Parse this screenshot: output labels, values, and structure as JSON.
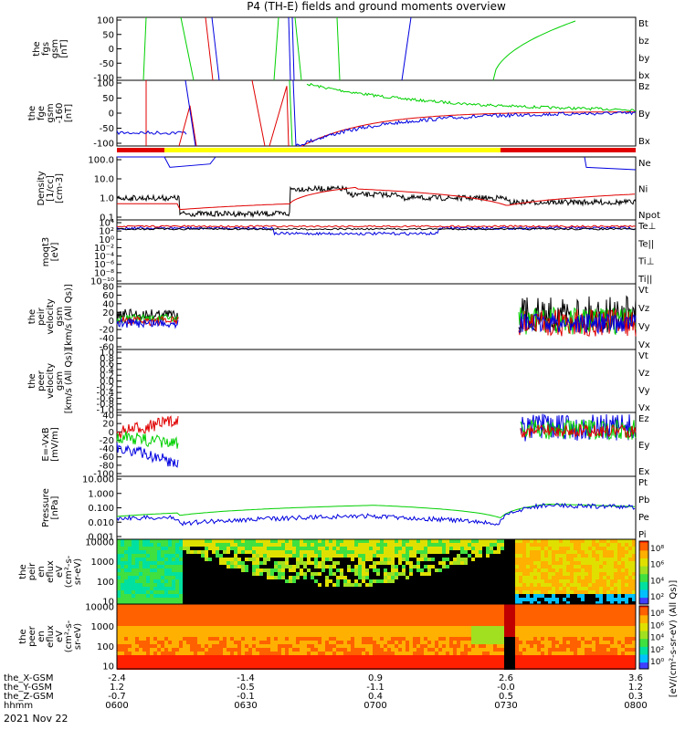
{
  "title": "P4 (TH-E) fields and ground moments overview",
  "date": "2021 Nov 22",
  "colors": {
    "black": "#000000",
    "red": "#e00000",
    "green": "#00d000",
    "blue": "#0000e0",
    "yellow": "#ffff00"
  },
  "panels": [
    {
      "id": "fgs",
      "ylabel": [
        "the",
        "fgs",
        "gsm",
        "[nT]"
      ],
      "ticks": [
        "100",
        "50",
        "0",
        "-50",
        "-100"
      ],
      "legend": [
        {
          "t": "Bt",
          "c": "black"
        },
        {
          "t": "bz",
          "c": "red"
        },
        {
          "t": "by",
          "c": "green"
        },
        {
          "t": "bx",
          "c": "blue"
        }
      ]
    },
    {
      "id": "fge",
      "ylabel": [
        "the",
        "fge",
        "gsm",
        "-160",
        "[nT]"
      ],
      "ticks": [
        "100",
        "50",
        "0",
        "-50",
        "-100"
      ],
      "legend": [
        {
          "t": "Bz",
          "c": "red"
        },
        {
          "t": "By",
          "c": "green"
        },
        {
          "t": "Bx",
          "c": "blue"
        }
      ]
    },
    {
      "id": "density",
      "ylabel": [
        "Density",
        "[1/cc]",
        "[cm-3]"
      ],
      "ticks": [
        "100.0",
        "10.0",
        "1.0",
        "0.1"
      ],
      "legend": [
        {
          "t": "Ne",
          "c": "red"
        },
        {
          "t": "Ni",
          "c": "black"
        },
        {
          "t": "Npot",
          "c": "blue"
        }
      ]
    },
    {
      "id": "temp",
      "ylabel": [
        "moqt3",
        "[eV]"
      ],
      "ticks": [
        "10⁴",
        "10²",
        "10⁰",
        "10⁻²",
        "10⁻⁴",
        "10⁻⁶",
        "10⁻⁸",
        "10⁻¹⁰"
      ],
      "legend": [
        {
          "t": "Te⊥",
          "c": "red"
        },
        {
          "t": "Te||",
          "c": "black"
        },
        {
          "t": "Ti⊥",
          "c": "blue"
        },
        {
          "t": "Ti||",
          "c": "green"
        }
      ]
    },
    {
      "id": "peirv",
      "ylabel": [
        "the",
        "peir",
        "velocity",
        "gsm",
        "[km/s (All Qs)]"
      ],
      "ticks": [
        "80",
        "60",
        "40",
        "20",
        "0",
        "-20",
        "-40",
        "-60"
      ],
      "legend": [
        {
          "t": "Vt",
          "c": "black"
        },
        {
          "t": "Vz",
          "c": "red"
        },
        {
          "t": "Vy",
          "c": "green"
        },
        {
          "t": "Vx",
          "c": "blue"
        }
      ]
    },
    {
      "id": "peerv",
      "ylabel": [
        "the",
        "peer",
        "velocity",
        "gsm",
        "[km/s (All Qs)]"
      ],
      "ticks": [
        "1.0",
        "0.8",
        "0.6",
        "0.4",
        "0.2",
        "0.0",
        "-0.2",
        "-0.4",
        "-0.6",
        "-0.8",
        "-1.0"
      ],
      "legend": [
        {
          "t": "Vt",
          "c": "black"
        },
        {
          "t": "Vz",
          "c": "red"
        },
        {
          "t": "Vy",
          "c": "green"
        },
        {
          "t": "Vx",
          "c": "blue"
        }
      ]
    },
    {
      "id": "efield",
      "ylabel": [
        "E=-VxB",
        "[mV/m]"
      ],
      "ticks": [
        "40",
        "20",
        "0",
        "-20",
        "-40",
        "-60",
        "-80",
        "-100"
      ],
      "legend": [
        {
          "t": "Ez",
          "c": "red"
        },
        {
          "t": "Ey",
          "c": "green"
        },
        {
          "t": "Ex",
          "c": "blue"
        }
      ]
    },
    {
      "id": "pressure",
      "ylabel": [
        "Pressure",
        "[nPa]"
      ],
      "ticks": [
        "10.000",
        "1.000",
        "0.100",
        "0.010",
        "0.001"
      ],
      "legend": [
        {
          "t": "Pt",
          "c": "black"
        },
        {
          "t": "Pb",
          "c": "red"
        },
        {
          "t": "Pe",
          "c": "green"
        },
        {
          "t": "Pi",
          "c": "blue"
        }
      ]
    },
    {
      "id": "peirspec",
      "ylabel": [
        "the",
        "peir",
        "en",
        "eflux",
        "eV",
        "(cm²-s-",
        "sr-eV)"
      ],
      "ticks": [
        "10000",
        "1000",
        "100",
        "10"
      ]
    },
    {
      "id": "peerspec",
      "ylabel": [
        "the",
        "peer",
        "en",
        "eflux",
        "eV",
        "(cm²-s-",
        "sr-eV)"
      ],
      "ticks": [
        "10000",
        "1000",
        "100",
        "10"
      ]
    }
  ],
  "colorbar": {
    "upper_ticks": [
      "10⁸",
      "10⁶",
      "10⁴",
      "10²"
    ],
    "lower_ticks": [
      "10⁸",
      "10⁶",
      "10⁴",
      "10²",
      "10⁰"
    ],
    "label": "[eV/(cm²-s-sr-eV) (All Qs)]"
  },
  "xaxis": {
    "rows": [
      {
        "label": "the_X-GSM",
        "values": [
          "-2.4",
          "-1.4",
          "0.9",
          "2.6",
          "3.6"
        ]
      },
      {
        "label": "the_Y-GSM",
        "values": [
          "1.2",
          "-0.5",
          "-1.1",
          "-0.0",
          "1.2"
        ]
      },
      {
        "label": "the_Z-GSM",
        "values": [
          "-0.7",
          "-0.1",
          "0.4",
          "0.5",
          "0.3"
        ]
      },
      {
        "label": "hhmm",
        "values": [
          "0600",
          "0630",
          "0700",
          "0730",
          "0800"
        ]
      }
    ]
  },
  "chart_data": [
    {
      "type": "line",
      "title": "",
      "ylabel": "the fgs gsm [nT]",
      "ylim": [
        -100,
        100
      ],
      "series": [
        {
          "name": "Bt",
          "values": []
        },
        {
          "name": "bz",
          "values": []
        },
        {
          "name": "by",
          "values": []
        },
        {
          "name": "bx",
          "values": []
        }
      ]
    },
    {
      "type": "line",
      "ylabel": "the fge gsm -160 [nT]",
      "ylim": [
        -120,
        100
      ],
      "series": [
        {
          "name": "Bz",
          "values": []
        },
        {
          "name": "By",
          "values": [
            95,
            75,
            55,
            40,
            30,
            20,
            12,
            8
          ]
        },
        {
          "name": "Bx",
          "values": [
            -100,
            -70,
            -50,
            -35,
            -22,
            -12,
            -3,
            2
          ]
        }
      ]
    },
    {
      "type": "line",
      "ylabel": "Density [1/cc]",
      "ylim": [
        0.1,
        100
      ],
      "scale": "log",
      "series": [
        {
          "name": "Ne",
          "values": []
        },
        {
          "name": "Ni",
          "values": []
        },
        {
          "name": "Npot",
          "values": []
        }
      ]
    },
    {
      "type": "line",
      "ylabel": "moqt3 [eV]",
      "ylim": [
        1e-10,
        10000.0
      ],
      "scale": "log",
      "series": [
        {
          "name": "Te⊥"
        },
        {
          "name": "Te||"
        },
        {
          "name": "Ti⊥"
        },
        {
          "name": "Ti||"
        }
      ]
    },
    {
      "type": "line",
      "ylabel": "the peir velocity gsm",
      "ylim": [
        -60,
        80
      ],
      "series": [
        {
          "name": "Vt"
        },
        {
          "name": "Vz"
        },
        {
          "name": "Vy"
        },
        {
          "name": "Vx"
        }
      ]
    },
    {
      "type": "line",
      "ylabel": "the peer velocity gsm",
      "ylim": [
        -1,
        1
      ],
      "series": [
        {
          "name": "Vt"
        },
        {
          "name": "Vz"
        },
        {
          "name": "Vy"
        },
        {
          "name": "Vx"
        }
      ]
    },
    {
      "type": "line",
      "ylabel": "E=-VxB [mV/m]",
      "ylim": [
        -100,
        40
      ],
      "series": [
        {
          "name": "Ez"
        },
        {
          "name": "Ey"
        },
        {
          "name": "Ex"
        }
      ]
    },
    {
      "type": "line",
      "ylabel": "Pressure [nPa]",
      "ylim": [
        0.001,
        10
      ],
      "scale": "log",
      "series": [
        {
          "name": "Pt"
        },
        {
          "name": "Pb"
        },
        {
          "name": "Pe"
        },
        {
          "name": "Pi"
        }
      ]
    },
    {
      "type": "heatmap",
      "ylabel": "the peir en eflux",
      "ylim": [
        10,
        10000
      ],
      "scale": "log"
    },
    {
      "type": "heatmap",
      "ylabel": "the peer en eflux",
      "ylim": [
        10,
        10000
      ],
      "scale": "log"
    }
  ]
}
